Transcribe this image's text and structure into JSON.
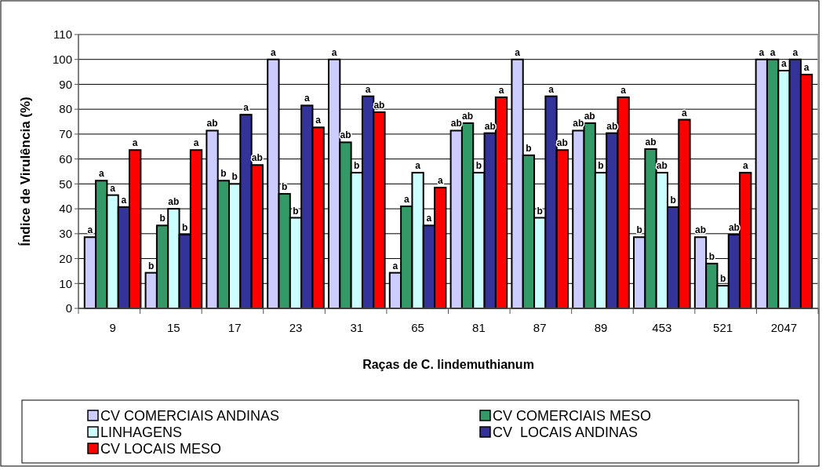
{
  "chart_data": {
    "type": "bar",
    "xlabel": "Raças de C. lindemuthianum",
    "ylabel": "Índice de Virulência (%)",
    "categories": [
      "9",
      "15",
      "17",
      "23",
      "31",
      "65",
      "81",
      "87",
      "89",
      "453",
      "521",
      "2047"
    ],
    "ylim": [
      0,
      110
    ],
    "yticks": [
      0,
      10,
      20,
      30,
      40,
      50,
      60,
      70,
      80,
      90,
      100,
      110
    ],
    "grid": "y",
    "legend": "bottom",
    "series": [
      {
        "name": "CV COMERCIAIS ANDINAS",
        "color": "#ccccff",
        "values": [
          28.6,
          14.3,
          71.4,
          100,
          100,
          14.3,
          71.4,
          100,
          71.4,
          28.6,
          28.6,
          100
        ],
        "value_labels": [
          "a",
          "b",
          "ab",
          "a",
          "a",
          "a",
          "ab",
          "a",
          "ab",
          "b",
          "ab",
          "a"
        ]
      },
      {
        "name": "CV COMERCIAIS MESO",
        "color": "#339966",
        "values": [
          51.3,
          33.3,
          51.3,
          46,
          66.7,
          41,
          74.4,
          61.5,
          74.4,
          64,
          18,
          100
        ],
        "value_labels": [
          "a",
          "b",
          "b",
          "b",
          "ab",
          "a",
          "ab",
          "b",
          "ab",
          "ab",
          "b",
          "a"
        ]
      },
      {
        "name": "LINHAGENS",
        "color": "#ccffff",
        "values": [
          45.5,
          40,
          50,
          36.4,
          54.5,
          54.5,
          54.5,
          36.4,
          54.5,
          54.5,
          9.1,
          95.5
        ],
        "value_labels": [
          "a",
          "ab",
          "b",
          "b",
          "b",
          "a",
          "b",
          "b",
          "b",
          "ab",
          "b",
          "a"
        ]
      },
      {
        "name": "CV  LOCAIS ANDINAS",
        "color": "#333399",
        "values": [
          40.7,
          29.6,
          77.8,
          81.5,
          85.2,
          33.3,
          70.4,
          85.2,
          70.4,
          40.7,
          29.6,
          100
        ],
        "value_labels": [
          "a",
          "b",
          "a",
          "a",
          "a",
          "a",
          "ab",
          "a",
          "ab",
          "b",
          "ab",
          "a"
        ]
      },
      {
        "name": "CV LOCAIS MESO",
        "color": "#ff0000",
        "values": [
          63.6,
          63.6,
          57.6,
          72.7,
          78.8,
          48.5,
          84.8,
          63.6,
          84.8,
          75.8,
          54.5,
          93.9
        ],
        "value_labels": [
          "a",
          "a",
          "ab",
          "a",
          "ab",
          "a",
          "a",
          "ab",
          "a",
          "a",
          "a",
          "a"
        ]
      }
    ]
  }
}
